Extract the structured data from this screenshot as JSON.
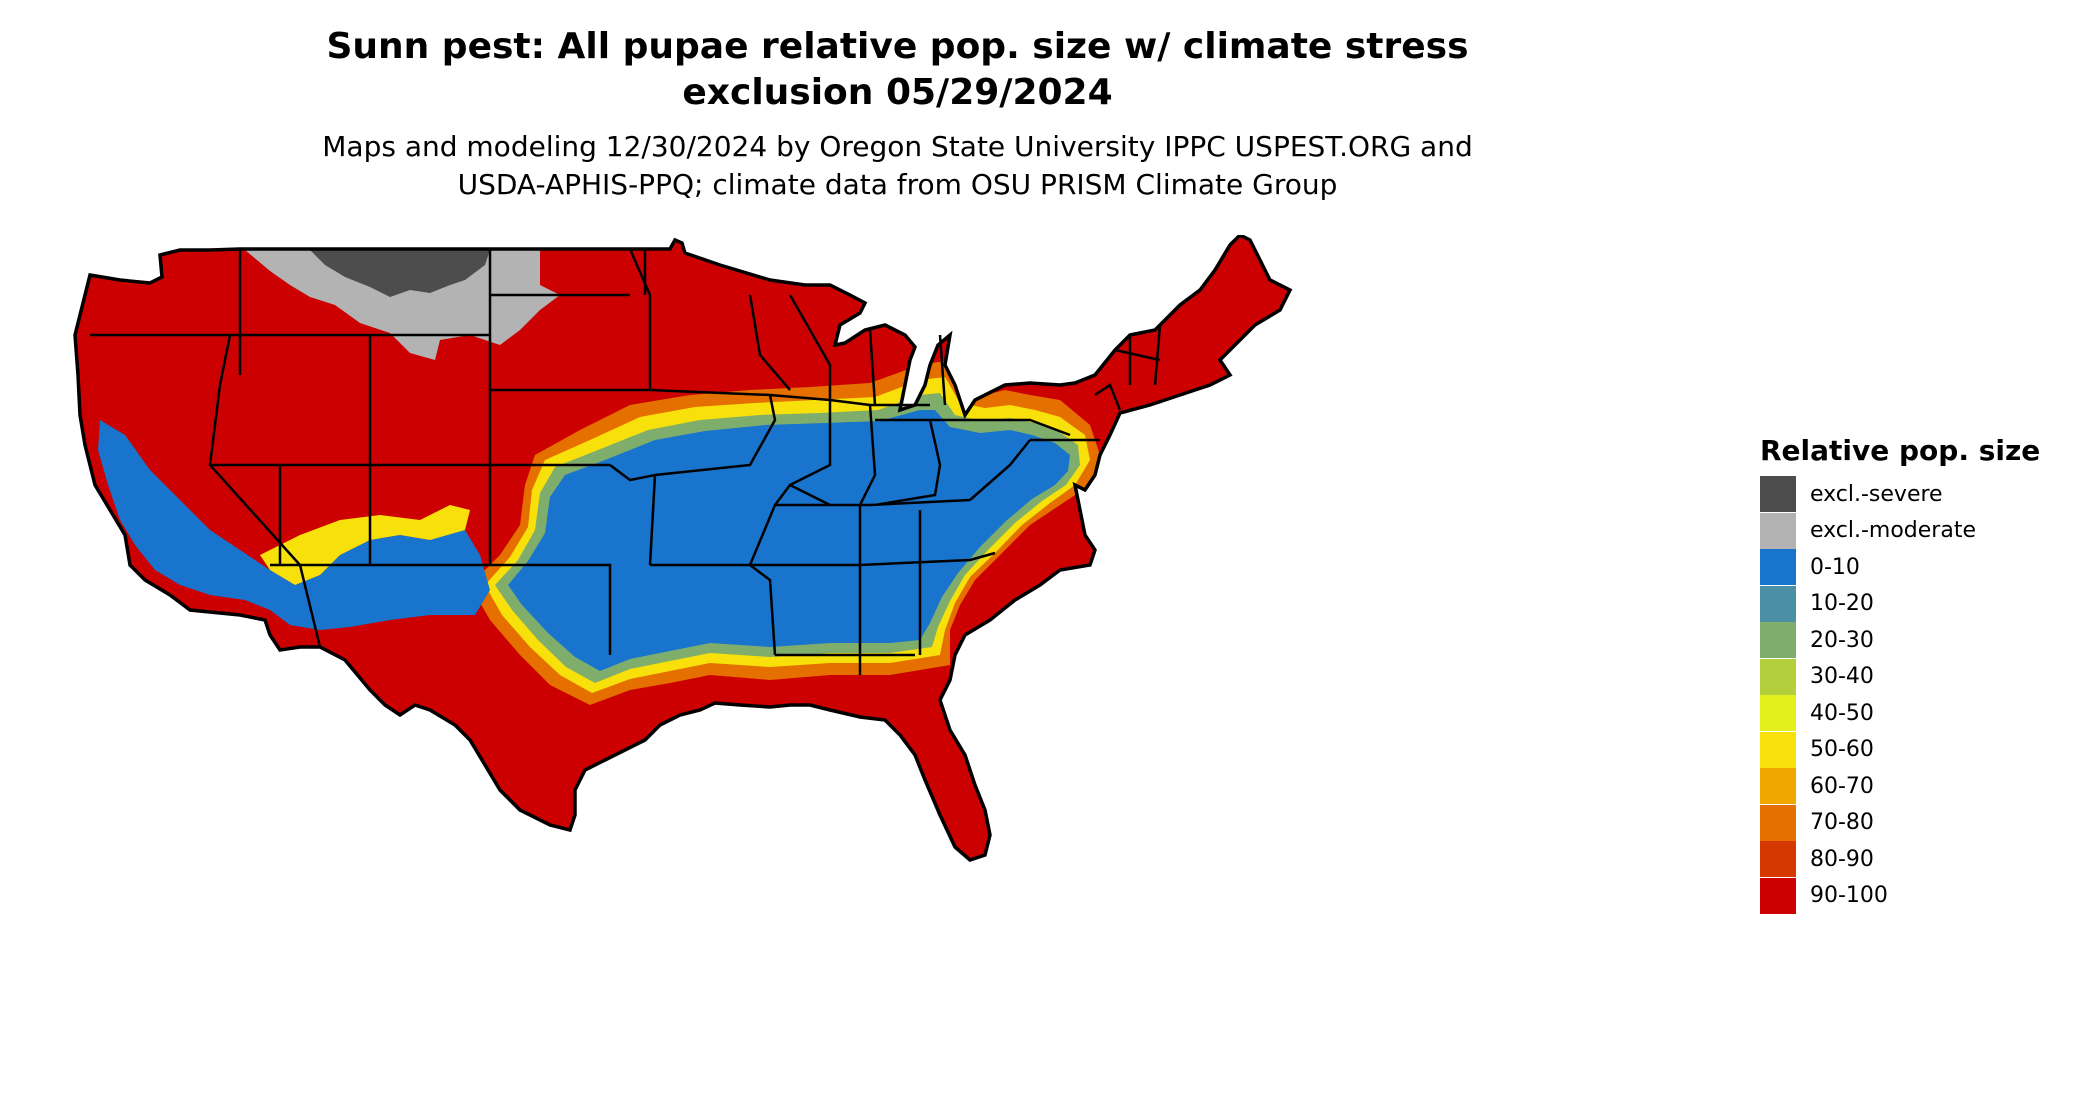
{
  "title": {
    "line1": "Sunn pest: All pupae relative pop. size w/ climate stress",
    "line2": "exclusion 05/29/2024"
  },
  "subtitle": {
    "line1": "Maps and modeling 12/30/2024 by Oregon State University IPPC USPEST.ORG and",
    "line2": "USDA-APHIS-PPQ; climate data from OSU PRISM Climate Group"
  },
  "legend": {
    "title": "Relative pop. size",
    "items": [
      {
        "label": "excl.-severe",
        "color": "#4d4d4d"
      },
      {
        "label": "excl.-moderate",
        "color": "#b3b3b3"
      },
      {
        "label": "0-10",
        "color": "#1874cd"
      },
      {
        "label": "10-20",
        "color": "#4a8fa3"
      },
      {
        "label": "20-30",
        "color": "#7fae6c"
      },
      {
        "label": "30-40",
        "color": "#b3cf3c"
      },
      {
        "label": "40-50",
        "color": "#e5ef1c"
      },
      {
        "label": "50-60",
        "color": "#f8e10a"
      },
      {
        "label": "60-70",
        "color": "#f0a800"
      },
      {
        "label": "70-80",
        "color": "#e57000"
      },
      {
        "label": "80-90",
        "color": "#d53800"
      },
      {
        "label": "90-100",
        "color": "#cc0000"
      }
    ]
  },
  "map": {
    "region": "contiguous-united-states",
    "base_color": "#cc0000",
    "zone_colors": {
      "low": "#1874cd",
      "band_low": "#7fae6c",
      "band_mid": "#f8e10a",
      "band_high": "#e57000",
      "excl_moderate": "#b3b3b3",
      "excl_severe": "#4d4d4d",
      "border": "#000000"
    }
  }
}
